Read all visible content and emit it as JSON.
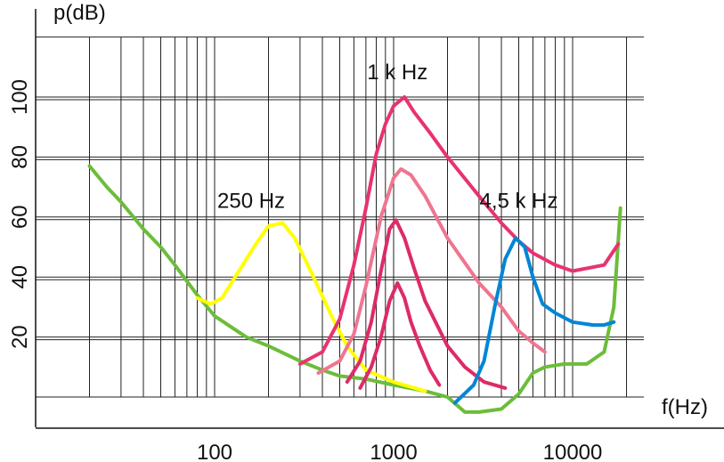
{
  "chart_data": {
    "type": "line",
    "title": "",
    "ylabel": "p(dB)",
    "xlabel": "f(Hz)",
    "x_scale": "log",
    "xlim": [
      10,
      25000
    ],
    "ylim": [
      0,
      120
    ],
    "grid": true,
    "x_ticks": [
      {
        "value": 100,
        "label": "100"
      },
      {
        "value": 1000,
        "label": "1000"
      },
      {
        "value": 10000,
        "label": "10000"
      }
    ],
    "y_ticks": [
      {
        "value": 20,
        "label": "20"
      },
      {
        "value": 40,
        "label": "40"
      },
      {
        "value": 60,
        "label": "60"
      },
      {
        "value": 80,
        "label": "80"
      },
      {
        "value": 100,
        "label": "100"
      }
    ],
    "annotations": [
      {
        "text": "250 Hz",
        "x": 160,
        "y": 63
      },
      {
        "text": "1 k Hz",
        "x": 1050,
        "y": 106
      },
      {
        "text": "4,5 k Hz",
        "x": 5000,
        "y": 63
      }
    ],
    "series": [
      {
        "color": "#6cbd3a",
        "points": [
          [
            20,
            77
          ],
          [
            25,
            70
          ],
          [
            30,
            65
          ],
          [
            40,
            56
          ],
          [
            50,
            50
          ],
          [
            60,
            44
          ],
          [
            80,
            34
          ],
          [
            100,
            27
          ],
          [
            150,
            20
          ],
          [
            200,
            17
          ],
          [
            300,
            12
          ],
          [
            400,
            9
          ],
          [
            500,
            7
          ],
          [
            700,
            6
          ],
          [
            1000,
            4
          ],
          [
            1500,
            2
          ],
          [
            2000,
            0
          ],
          [
            2500,
            -5
          ],
          [
            3000,
            -5
          ],
          [
            4000,
            -4
          ],
          [
            5000,
            1
          ],
          [
            6000,
            8
          ],
          [
            7000,
            10
          ],
          [
            9000,
            11
          ],
          [
            12000,
            11
          ],
          [
            15000,
            15
          ],
          [
            17000,
            30
          ],
          [
            18500,
            63
          ]
        ]
      },
      {
        "color": "#ffff00",
        "points": [
          [
            80,
            33
          ],
          [
            95,
            31
          ],
          [
            110,
            33
          ],
          [
            140,
            43
          ],
          [
            170,
            51
          ],
          [
            200,
            57
          ],
          [
            240,
            58
          ],
          [
            280,
            53
          ],
          [
            350,
            41
          ],
          [
            450,
            27
          ],
          [
            550,
            17
          ],
          [
            700,
            9
          ],
          [
            1000,
            5
          ],
          [
            1500,
            2
          ]
        ]
      },
      {
        "color": "#e83370",
        "points": [
          [
            300,
            11
          ],
          [
            400,
            15
          ],
          [
            500,
            26
          ],
          [
            600,
            44
          ],
          [
            700,
            63
          ],
          [
            800,
            81
          ],
          [
            900,
            91
          ],
          [
            1000,
            97
          ],
          [
            1150,
            100
          ],
          [
            1300,
            95
          ],
          [
            1600,
            88
          ],
          [
            2000,
            80
          ],
          [
            3000,
            67
          ],
          [
            4000,
            58
          ],
          [
            5000,
            52
          ],
          [
            6000,
            48
          ],
          [
            8000,
            44
          ],
          [
            10000,
            42
          ],
          [
            15000,
            44
          ],
          [
            18000,
            51
          ]
        ]
      },
      {
        "color": "#ef7590",
        "points": [
          [
            380,
            8
          ],
          [
            500,
            12
          ],
          [
            600,
            21
          ],
          [
            700,
            37
          ],
          [
            850,
            60
          ],
          [
            1000,
            73
          ],
          [
            1100,
            76
          ],
          [
            1250,
            74
          ],
          [
            1500,
            67
          ],
          [
            2000,
            53
          ],
          [
            3000,
            38
          ],
          [
            4000,
            30
          ],
          [
            5000,
            22
          ],
          [
            6000,
            18
          ],
          [
            7000,
            15
          ]
        ]
      },
      {
        "color": "#dd2a68",
        "points": [
          [
            550,
            5
          ],
          [
            650,
            12
          ],
          [
            750,
            25
          ],
          [
            850,
            42
          ],
          [
            950,
            56
          ],
          [
            1030,
            59
          ],
          [
            1150,
            53
          ],
          [
            1300,
            43
          ],
          [
            1500,
            32
          ],
          [
            2000,
            17
          ],
          [
            2500,
            10
          ],
          [
            3200,
            5
          ],
          [
            4200,
            3
          ]
        ]
      },
      {
        "color": "#dd2a68",
        "points": [
          [
            650,
            3
          ],
          [
            750,
            10
          ],
          [
            850,
            20
          ],
          [
            950,
            32
          ],
          [
            1050,
            38
          ],
          [
            1150,
            33
          ],
          [
            1250,
            25
          ],
          [
            1400,
            17
          ],
          [
            1600,
            9
          ],
          [
            1800,
            4
          ]
        ]
      },
      {
        "color": "#0086d6",
        "points": [
          [
            2200,
            -2
          ],
          [
            2800,
            4
          ],
          [
            3200,
            12
          ],
          [
            3700,
            31
          ],
          [
            4200,
            46
          ],
          [
            4800,
            53
          ],
          [
            5400,
            50
          ],
          [
            6000,
            40
          ],
          [
            6800,
            31
          ],
          [
            8000,
            28
          ],
          [
            10000,
            25
          ],
          [
            13000,
            24
          ],
          [
            15000,
            24
          ],
          [
            17000,
            25
          ]
        ]
      }
    ]
  }
}
